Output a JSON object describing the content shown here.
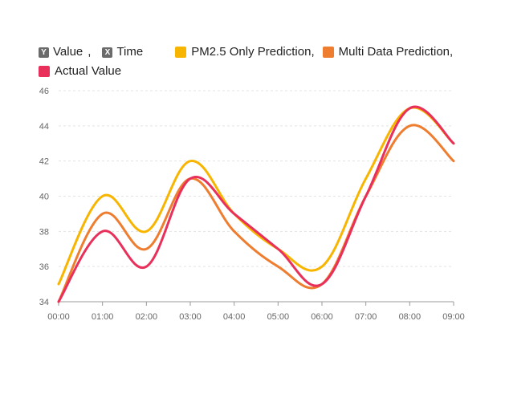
{
  "legend": {
    "y_key_badge": "Y",
    "y_key_label": "Value",
    "y_key_sep": ",",
    "x_key_badge": "X",
    "x_key_label": "Time",
    "series_labels": [
      "PM2.5 Only Prediction,",
      "Multi Data Prediction,",
      "Actual Value"
    ]
  },
  "chart_data": {
    "type": "line",
    "title": "",
    "xlabel": "Time",
    "ylabel": "Value",
    "x": [
      "00:00",
      "01:00",
      "02:00",
      "03:00",
      "04:00",
      "05:00",
      "06:00",
      "07:00",
      "08:00",
      "09:00"
    ],
    "yticks": [
      34,
      36,
      38,
      40,
      42,
      44,
      46
    ],
    "ylim": [
      34,
      46
    ],
    "grid": true,
    "legend_position": "top",
    "series": [
      {
        "name": "PM2.5 Only Prediction",
        "color": "#f7b500",
        "values": [
          35,
          40,
          38,
          42,
          39,
          37,
          36,
          41,
          45,
          43
        ]
      },
      {
        "name": "Multi Data Prediction",
        "color": "#ee7d2f",
        "values": [
          34,
          39,
          37,
          41,
          38,
          36,
          35,
          40,
          44,
          42
        ]
      },
      {
        "name": "Actual Value",
        "color": "#e8305a",
        "values": [
          34,
          38,
          36,
          41,
          39,
          37,
          35,
          40,
          45,
          43
        ]
      }
    ]
  }
}
